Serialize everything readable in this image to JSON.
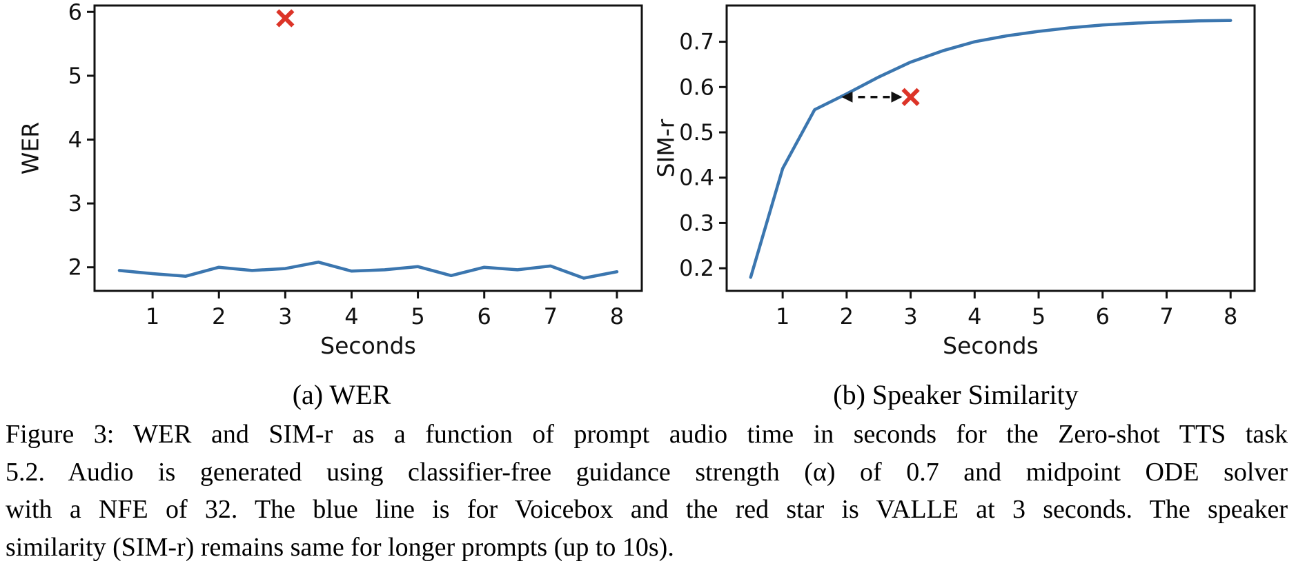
{
  "figure": {
    "subcaptions": [
      "(a) WER",
      "(b) Speaker Similarity"
    ],
    "caption_lines": [
      "Figure 3: WER and SIM-r as a function of prompt audio time in seconds for the Zero-shot TTS task",
      "5.2. Audio is generated using classifier-free guidance strength (α) of 0.7 and midpoint ODE solver",
      "with a NFE of 32. The blue line is for Voicebox and the red star is VALLE at 3 seconds. The speaker",
      "similarity (SIM-r) remains same for longer prompts (up to 10s)."
    ]
  },
  "colors": {
    "line_blue": "#3b76af",
    "marker_red": "#dc3428",
    "ink": "#111111"
  },
  "chart_data": [
    {
      "type": "line",
      "title": "(a) WER",
      "xlabel": "Seconds",
      "ylabel": "WER",
      "grid": false,
      "legend": "none",
      "xlim": [
        0.125,
        8.375
      ],
      "ylim": [
        1.63,
        6.1
      ],
      "xticks": [
        1,
        2,
        3,
        4,
        5,
        6,
        7,
        8
      ],
      "yticks": [
        2,
        3,
        4,
        5,
        6
      ],
      "x": [
        0.5,
        1.0,
        1.5,
        2.0,
        2.5,
        3.0,
        3.5,
        4.0,
        4.5,
        5.0,
        5.5,
        6.0,
        6.5,
        7.0,
        7.5,
        8.0
      ],
      "series": [
        {
          "name": "Voicebox",
          "color": "#3b76af",
          "values": [
            1.95,
            1.9,
            1.86,
            2.0,
            1.95,
            1.98,
            2.08,
            1.94,
            1.96,
            2.01,
            1.87,
            2.0,
            1.96,
            2.02,
            1.83,
            1.93
          ]
        }
      ],
      "marker": {
        "name": "VALLE",
        "shape": "x",
        "x": 3,
        "y": 5.9,
        "color": "#dc3428"
      }
    },
    {
      "type": "line",
      "title": "(b) Speaker Similarity",
      "xlabel": "Seconds",
      "ylabel": "SIM-r",
      "grid": false,
      "legend": "none",
      "xlim": [
        0.125,
        8.375
      ],
      "ylim": [
        0.15,
        0.78
      ],
      "xticks": [
        1,
        2,
        3,
        4,
        5,
        6,
        7,
        8
      ],
      "yticks": [
        0.2,
        0.3,
        0.4,
        0.5,
        0.6,
        0.7
      ],
      "x": [
        0.5,
        1.0,
        1.5,
        2.0,
        2.5,
        3.0,
        3.5,
        4.0,
        4.5,
        5.0,
        5.5,
        6.0,
        6.5,
        7.0,
        7.5,
        8.0
      ],
      "series": [
        {
          "name": "Voicebox",
          "color": "#3b76af",
          "values": [
            0.18,
            0.42,
            0.55,
            0.585,
            0.622,
            0.655,
            0.68,
            0.7,
            0.713,
            0.723,
            0.731,
            0.737,
            0.741,
            0.744,
            0.746,
            0.747
          ]
        }
      ],
      "marker": {
        "name": "VALLE",
        "shape": "x",
        "x": 3,
        "y": 0.578,
        "color": "#dc3428"
      },
      "annotation_arrow": {
        "style": "dashed-double-headed",
        "x1": 1.92,
        "x2": 2.87,
        "y": 0.578
      }
    }
  ]
}
